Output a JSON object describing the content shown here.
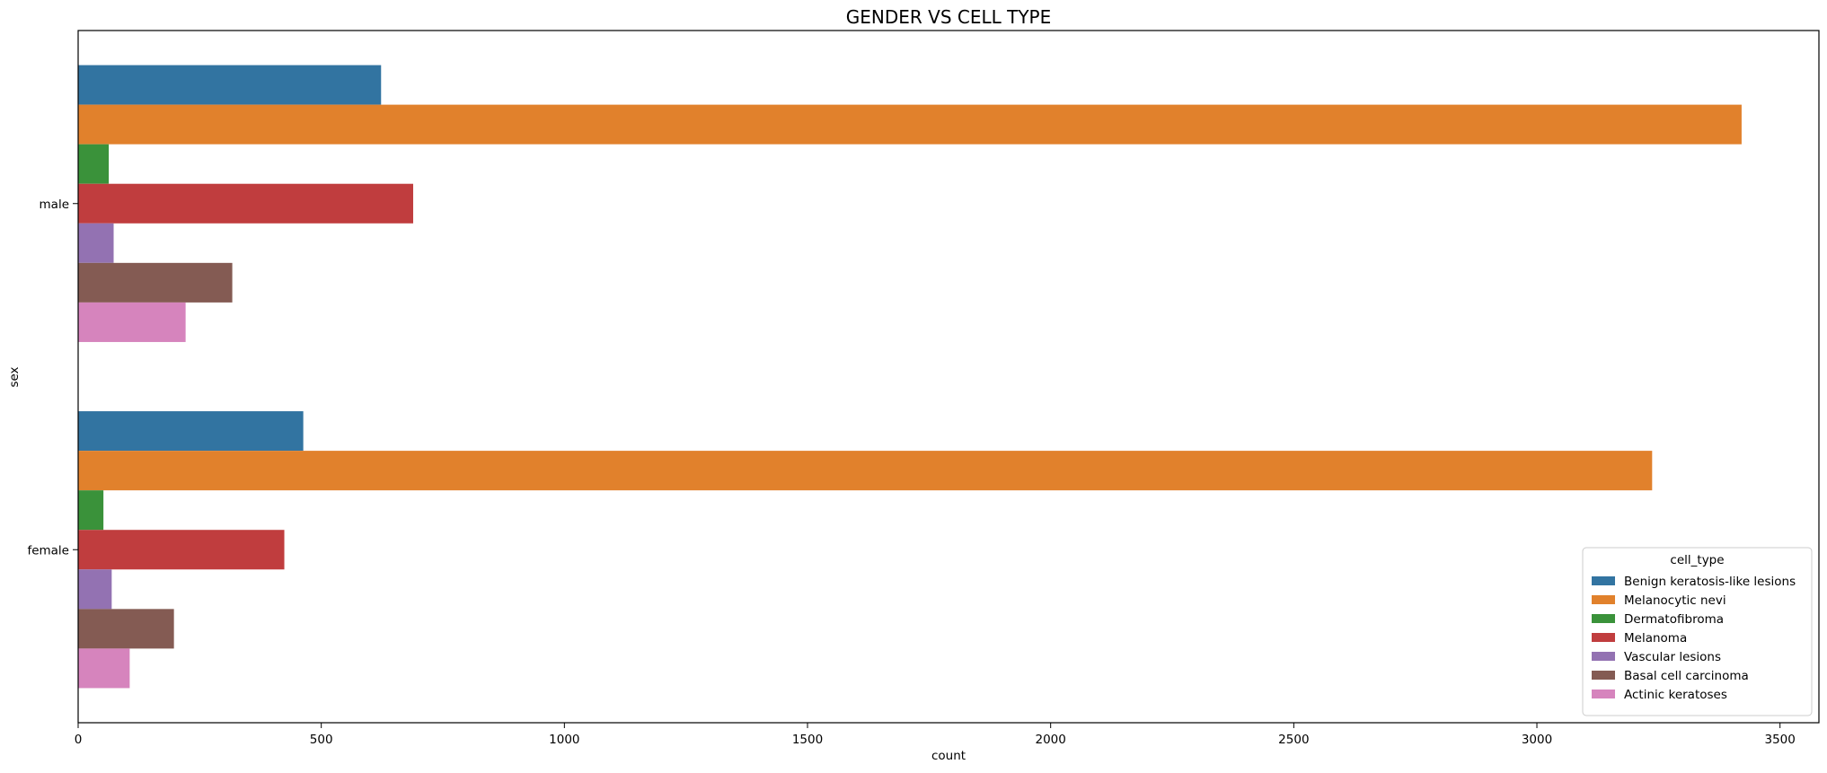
{
  "chart_data": {
    "type": "bar",
    "orientation": "horizontal",
    "title": "GENDER VS CELL TYPE",
    "xlabel": "count",
    "ylabel": "sex",
    "categories": [
      "male",
      "female"
    ],
    "xlim": [
      0,
      3580
    ],
    "xticks": [
      0,
      500,
      1000,
      1500,
      2000,
      2500,
      3000,
      3500
    ],
    "grid": false,
    "legend": {
      "title": "cell_type",
      "placement": "lower right"
    },
    "series": [
      {
        "name": "Benign keratosis-like lesions",
        "color": "#3274a1",
        "values": [
          623,
          463
        ]
      },
      {
        "name": "Melanocytic nevi",
        "color": "#e1812c",
        "values": [
          3421,
          3237
        ]
      },
      {
        "name": "Dermatofibroma",
        "color": "#3a923a",
        "values": [
          63,
          52
        ]
      },
      {
        "name": "Melanoma",
        "color": "#c03d3e",
        "values": [
          689,
          424
        ]
      },
      {
        "name": "Vascular lesions",
        "color": "#9372b2",
        "values": [
          73,
          69
        ]
      },
      {
        "name": "Basal cell carcinoma",
        "color": "#845b53",
        "values": [
          317,
          197
        ]
      },
      {
        "name": "Actinic keratoses",
        "color": "#d684bd",
        "values": [
          221,
          106
        ]
      }
    ]
  }
}
